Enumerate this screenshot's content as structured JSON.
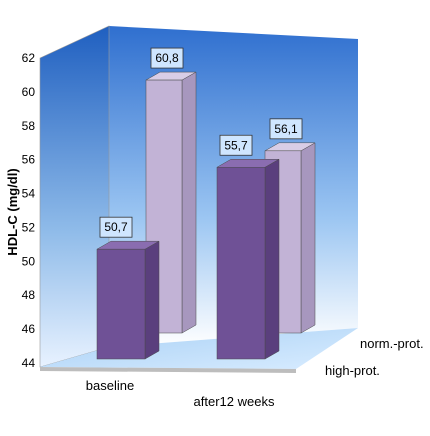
{
  "chart_data": {
    "type": "bar",
    "categories": [
      "baseline",
      "after12 weeks"
    ],
    "series": [
      {
        "name": "high-prot.",
        "values": [
          50.7,
          55.7
        ],
        "labels": [
          "50,7",
          "55,7"
        ]
      },
      {
        "name": "norm.-prot.",
        "values": [
          60.8,
          56.1
        ],
        "labels": [
          "60,8",
          "56,1"
        ]
      }
    ],
    "ylabel": "HDL-C (mg/dl)",
    "ylim": [
      44,
      62
    ],
    "yticks": [
      "44",
      "46",
      "48",
      "50",
      "52",
      "54",
      "56",
      "58",
      "60",
      "62"
    ],
    "grid": false,
    "legend_placement": "depth axis, right",
    "colors": {
      "front_series": "#6f5196",
      "back_series": "#c2b3d6",
      "wall_top": "#2f6fcf",
      "wall_bottom": "#ffffff",
      "label_bg": "#cfe6ff"
    }
  }
}
